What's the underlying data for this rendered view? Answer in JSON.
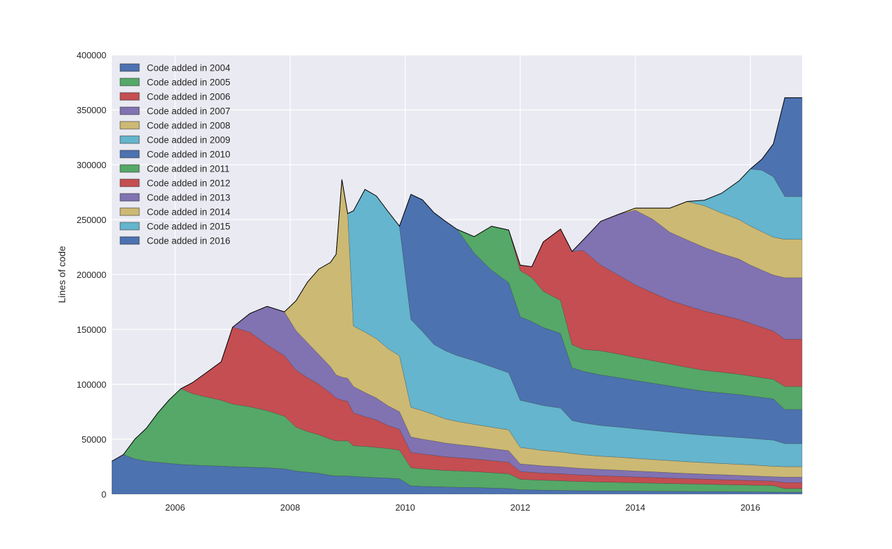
{
  "chart_data": {
    "type": "area",
    "stacked": true,
    "ylabel": "Lines of code",
    "xlabel": "",
    "xlim": [
      2004.9,
      2016.9
    ],
    "ylim": [
      0,
      400000
    ],
    "xticks": [
      2006,
      2008,
      2010,
      2012,
      2014,
      2016
    ],
    "xtick_labels": [
      "2006",
      "2008",
      "2010",
      "2012",
      "2014",
      "2016"
    ],
    "yticks": [
      0,
      50000,
      100000,
      150000,
      200000,
      250000,
      300000,
      350000,
      400000
    ],
    "ytick_labels": [
      "0",
      "50000",
      "100000",
      "150000",
      "200000",
      "250000",
      "300000",
      "350000",
      "400000"
    ],
    "grid": true,
    "legend_position": "top-left",
    "x": [
      2004.9,
      2005.1,
      2005.3,
      2005.5,
      2005.7,
      2005.9,
      2006.1,
      2006.3,
      2006.5,
      2006.8,
      2007.0,
      2007.3,
      2007.6,
      2007.9,
      2008.1,
      2008.3,
      2008.5,
      2008.7,
      2008.8,
      2008.9,
      2009.0,
      2009.1,
      2009.3,
      2009.5,
      2009.7,
      2009.9,
      2010.1,
      2010.3,
      2010.5,
      2010.7,
      2010.9,
      2011.2,
      2011.5,
      2011.8,
      2012.0,
      2012.2,
      2012.4,
      2012.7,
      2012.9,
      2013.1,
      2013.4,
      2013.7,
      2014.0,
      2014.3,
      2014.6,
      2014.9,
      2015.2,
      2015.5,
      2015.8,
      2016.0,
      2016.2,
      2016.4,
      2016.6,
      2016.9
    ],
    "series": [
      {
        "name": "Code added in 2004",
        "color": "#4c72b0",
        "values": [
          30000,
          36000,
          32000,
          30000,
          29000,
          28000,
          27000,
          26500,
          26000,
          25500,
          25000,
          24500,
          24000,
          23000,
          21000,
          20000,
          19000,
          17000,
          16500,
          16500,
          16500,
          16000,
          15500,
          15000,
          14500,
          14000,
          7500,
          7000,
          6800,
          6500,
          6200,
          6000,
          5500,
          5000,
          4000,
          3800,
          3600,
          3400,
          3200,
          3100,
          3000,
          2900,
          2800,
          2700,
          2600,
          2500,
          2400,
          2300,
          2200,
          2100,
          2000,
          1900,
          1800,
          1800
        ]
      },
      {
        "name": "Code added in 2005",
        "color": "#55a868",
        "values": [
          0,
          0,
          18000,
          30000,
          45000,
          58000,
          69000,
          65000,
          63000,
          60000,
          57000,
          55000,
          52000,
          48000,
          40000,
          37000,
          35000,
          33000,
          32000,
          32000,
          32000,
          28000,
          28000,
          27500,
          27000,
          26000,
          16500,
          16000,
          15500,
          15000,
          15000,
          14500,
          14000,
          13500,
          9500,
          9200,
          9000,
          8800,
          8500,
          8300,
          8000,
          7800,
          7500,
          7300,
          7000,
          6800,
          6600,
          6400,
          6200,
          6100,
          6000,
          5900,
          3200,
          3200
        ]
      },
      {
        "name": "Code added in 2006",
        "color": "#c44e52",
        "values": [
          0,
          0,
          0,
          0,
          0,
          0,
          0,
          10000,
          20000,
          35000,
          70000,
          68000,
          60000,
          55000,
          52000,
          49000,
          46000,
          42000,
          39000,
          37000,
          36000,
          30000,
          27000,
          25000,
          21000,
          19000,
          14000,
          13500,
          13000,
          12500,
          12000,
          11500,
          11000,
          10500,
          7000,
          6800,
          6500,
          6300,
          6100,
          5900,
          5700,
          5500,
          5300,
          5100,
          4900,
          4700,
          4600,
          4400,
          4300,
          4200,
          4100,
          4000,
          5500,
          5500
        ]
      },
      {
        "name": "Code added in 2007",
        "color": "#8172b2",
        "values": [
          0,
          0,
          0,
          0,
          0,
          0,
          0,
          0,
          0,
          0,
          0,
          17000,
          35000,
          40000,
          36000,
          32000,
          27000,
          24000,
          21000,
          21000,
          21000,
          24000,
          22000,
          20000,
          18000,
          16000,
          14000,
          13500,
          13000,
          12500,
          12000,
          11500,
          11000,
          10500,
          7000,
          6800,
          6600,
          6400,
          6200,
          6000,
          5800,
          5600,
          5400,
          5200,
          5000,
          4800,
          4600,
          4500,
          4300,
          4200,
          4100,
          4000,
          5000,
          5000
        ]
      },
      {
        "name": "Code added in 2008",
        "color": "#ccb974",
        "values": [
          0,
          0,
          0,
          0,
          0,
          0,
          0,
          0,
          0,
          0,
          0,
          0,
          0,
          0,
          27000,
          55000,
          78000,
          95000,
          110000,
          180000,
          150000,
          55000,
          55000,
          54000,
          52000,
          51000,
          27000,
          26000,
          24000,
          22000,
          21000,
          20000,
          19500,
          19000,
          15000,
          14500,
          14000,
          13500,
          13000,
          12500,
          12000,
          11800,
          11500,
          11200,
          11000,
          10700,
          10500,
          10300,
          10100,
          10000,
          9800,
          9600,
          9500,
          9500
        ]
      },
      {
        "name": "Code added in 2009",
        "color": "#64b5cd",
        "values": [
          0,
          0,
          0,
          0,
          0,
          0,
          0,
          0,
          0,
          0,
          0,
          0,
          0,
          0,
          0,
          0,
          0,
          0,
          0,
          0,
          0,
          105000,
          130000,
          130000,
          125000,
          118000,
          80000,
          72000,
          64000,
          62000,
          60000,
          58000,
          55000,
          52000,
          43000,
          42000,
          41000,
          40000,
          30000,
          29000,
          28000,
          27500,
          27000,
          26500,
          26000,
          25500,
          25000,
          24800,
          24500,
          24300,
          24000,
          23800,
          21000,
          21000
        ]
      },
      {
        "name": "Code added in 2010",
        "color": "#4c72b0",
        "values": [
          0,
          0,
          0,
          0,
          0,
          0,
          0,
          0,
          0,
          0,
          0,
          0,
          0,
          0,
          0,
          0,
          0,
          0,
          0,
          0,
          0,
          0,
          0,
          0,
          0,
          0,
          114000,
          120000,
          120000,
          118000,
          115000,
          98000,
          88000,
          82000,
          76000,
          74000,
          71000,
          68000,
          48000,
          47000,
          46000,
          45000,
          44000,
          43000,
          42000,
          41000,
          40000,
          39500,
          39000,
          38500,
          38000,
          37500,
          31000,
          31000
        ]
      },
      {
        "name": "Code added in 2011",
        "color": "#55a868",
        "values": [
          0,
          0,
          0,
          0,
          0,
          0,
          0,
          0,
          0,
          0,
          0,
          0,
          0,
          0,
          0,
          0,
          0,
          0,
          0,
          0,
          0,
          0,
          0,
          0,
          0,
          0,
          0,
          0,
          0,
          0,
          0,
          15000,
          40000,
          48000,
          42000,
          40000,
          33000,
          30000,
          21000,
          20000,
          22000,
          21500,
          21000,
          20500,
          20000,
          19500,
          19000,
          18800,
          18500,
          18200,
          18000,
          17800,
          21000,
          21000
        ]
      },
      {
        "name": "Code added in 2012",
        "color": "#c44e52",
        "values": [
          0,
          0,
          0,
          0,
          0,
          0,
          0,
          0,
          0,
          0,
          0,
          0,
          0,
          0,
          0,
          0,
          0,
          0,
          0,
          0,
          0,
          0,
          0,
          0,
          0,
          0,
          0,
          0,
          0,
          0,
          0,
          0,
          0,
          0,
          5000,
          10000,
          45000,
          65000,
          85000,
          90000,
          78000,
          72000,
          66000,
          62000,
          58000,
          56000,
          54000,
          52000,
          50000,
          48000,
          46000,
          44000,
          43000,
          43000
        ]
      },
      {
        "name": "Code added in 2013",
        "color": "#8172b2",
        "values": [
          0,
          0,
          0,
          0,
          0,
          0,
          0,
          0,
          0,
          0,
          0,
          0,
          0,
          0,
          0,
          0,
          0,
          0,
          0,
          0,
          0,
          0,
          0,
          0,
          0,
          0,
          0,
          0,
          0,
          0,
          0,
          0,
          0,
          0,
          0,
          0,
          0,
          0,
          0,
          10000,
          40000,
          55000,
          68000,
          67000,
          62000,
          60000,
          58000,
          56000,
          55000,
          53000,
          52000,
          51000,
          56000,
          56000
        ]
      },
      {
        "name": "Code added in 2014",
        "color": "#ccb974",
        "values": [
          0,
          0,
          0,
          0,
          0,
          0,
          0,
          0,
          0,
          0,
          0,
          0,
          0,
          0,
          0,
          0,
          0,
          0,
          0,
          0,
          0,
          0,
          0,
          0,
          0,
          0,
          0,
          0,
          0,
          0,
          0,
          0,
          0,
          0,
          0,
          0,
          0,
          0,
          0,
          0,
          0,
          0,
          2000,
          10000,
          22000,
          35000,
          38000,
          37000,
          36000,
          35500,
          35000,
          34500,
          35000,
          35000
        ]
      },
      {
        "name": "Code added in 2015",
        "color": "#64b5cd",
        "values": [
          0,
          0,
          0,
          0,
          0,
          0,
          0,
          0,
          0,
          0,
          0,
          0,
          0,
          0,
          0,
          0,
          0,
          0,
          0,
          0,
          0,
          0,
          0,
          0,
          0,
          0,
          0,
          0,
          0,
          0,
          0,
          0,
          0,
          0,
          0,
          0,
          0,
          0,
          0,
          0,
          0,
          0,
          0,
          0,
          0,
          0,
          5000,
          18000,
          35000,
          52000,
          56000,
          55000,
          39000,
          39000
        ]
      },
      {
        "name": "Code added in 2016",
        "color": "#4c72b0",
        "values": [
          0,
          0,
          0,
          0,
          0,
          0,
          0,
          0,
          0,
          0,
          0,
          0,
          0,
          0,
          0,
          0,
          0,
          0,
          0,
          0,
          0,
          0,
          0,
          0,
          0,
          0,
          0,
          0,
          0,
          0,
          0,
          0,
          0,
          0,
          0,
          0,
          0,
          0,
          0,
          0,
          0,
          0,
          0,
          0,
          0,
          0,
          0,
          0,
          0,
          0,
          10000,
          30000,
          90000,
          90000
        ]
      }
    ]
  }
}
